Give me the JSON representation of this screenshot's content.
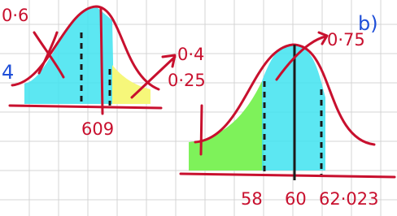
{
  "left_curve": {
    "side_label": "4",
    "area_label": "0·6",
    "x_label": "609"
  },
  "middle_labels": {
    "upper": "0·4",
    "lower": "0·25"
  },
  "right_curve": {
    "area_label": "0·75",
    "x_labels": [
      "58",
      "60",
      "62·023"
    ]
  },
  "part_label": "b)"
}
